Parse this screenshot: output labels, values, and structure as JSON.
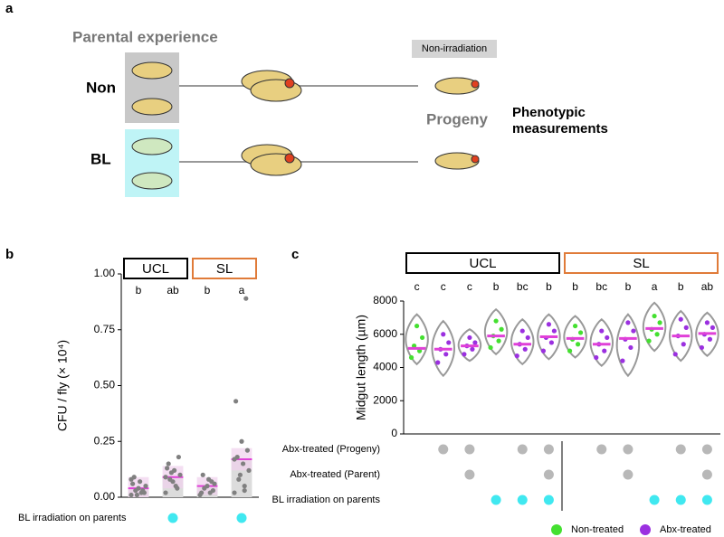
{
  "panel_a": {
    "label": "a",
    "heading": "Parental experience",
    "rows": [
      "Non",
      "BL"
    ],
    "tag": "Non-irradiation",
    "progeny": "Progeny",
    "measure": [
      "Phenotypic",
      "measurements"
    ]
  },
  "chart_data": [
    {
      "type": "bar",
      "panel": "b",
      "categories": [
        null,
        null,
        null,
        null
      ],
      "values": [
        0.04,
        0.09,
        0.05,
        0.17
      ],
      "errors": [
        0.05,
        0.05,
        0.04,
        0.05
      ],
      "points": [
        [
          0.01,
          0.02,
          0.03,
          0.05,
          0.07,
          0.09,
          0.02,
          0.04,
          0.06,
          0.03,
          0.01,
          0.08
        ],
        [
          0.02,
          0.05,
          0.08,
          0.1,
          0.12,
          0.15,
          0.18,
          0.07,
          0.13,
          0.04,
          0.11,
          0.09
        ],
        [
          0.01,
          0.02,
          0.04,
          0.06,
          0.08,
          0.1,
          0.03,
          0.05,
          0.02,
          0.07
        ],
        [
          0.02,
          0.05,
          0.08,
          0.12,
          0.15,
          0.18,
          0.21,
          0.25,
          0.43,
          0.89,
          0.1,
          0.17,
          0.03
        ]
      ],
      "letters": [
        "b",
        "ab",
        "b",
        "a"
      ],
      "groups": [
        {
          "name": "UCL",
          "color": "#000000",
          "from": 0,
          "to": 1
        },
        {
          "name": "SL",
          "color": "#e07b39",
          "from": 2,
          "to": 3
        }
      ],
      "ylabel": "CFU / fly (× 10⁴)",
      "ylim": [
        0,
        1
      ],
      "yticks": [
        {
          "value": 0,
          "label": "0.00"
        },
        {
          "value": 0.25,
          "label": "0.25"
        },
        {
          "value": 0.5,
          "label": "0.50"
        },
        {
          "value": 0.75,
          "label": "0.75"
        },
        {
          "value": 1,
          "label": "1.00"
        }
      ],
      "bar_color": "#dcdcdc",
      "error_color": "#f0d0ec",
      "mean_color": "#e040d8",
      "point_color": "#808080",
      "rows": [
        {
          "name": "BL irradiation on parents",
          "values": [
            false,
            true,
            false,
            true
          ]
        }
      ],
      "row_color": "#40e8f0"
    },
    {
      "type": "violin",
      "panel": "c",
      "categories": [
        null,
        null,
        null,
        null,
        null,
        null,
        null,
        null,
        null,
        null,
        null,
        null
      ],
      "values": [
        5150,
        5100,
        5300,
        5900,
        5400,
        5850,
        5750,
        5400,
        5750,
        6350,
        5900,
        6050
      ],
      "min": [
        4200,
        3500,
        4400,
        4800,
        4200,
        4500,
        4600,
        4100,
        3500,
        5000,
        4400,
        4700
      ],
      "max": [
        7200,
        6800,
        6300,
        7500,
        6900,
        7200,
        7100,
        6900,
        7200,
        7900,
        7400,
        7300
      ],
      "points": [
        [
          4600,
          5000,
          5300,
          5800,
          6500
        ],
        [
          4300,
          4800,
          5100,
          5500,
          6000
        ],
        [
          4800,
          5100,
          5300,
          5500,
          5800
        ],
        [
          5200,
          5600,
          5900,
          6300,
          6800
        ],
        [
          4700,
          5100,
          5400,
          5800,
          6200
        ],
        [
          5000,
          5500,
          5800,
          6200,
          6600
        ],
        [
          5000,
          5400,
          5700,
          6100,
          6500
        ],
        [
          4600,
          5000,
          5400,
          5800,
          6200
        ],
        [
          4400,
          5200,
          5700,
          6200,
          6700
        ],
        [
          5600,
          6000,
          6300,
          6700,
          7100
        ],
        [
          4800,
          5400,
          5900,
          6400,
          6900
        ],
        [
          5200,
          5700,
          6000,
          6400,
          6700
        ]
      ],
      "point_series": [
        0,
        1,
        1,
        0,
        1,
        1,
        0,
        1,
        1,
        0,
        1,
        1
      ],
      "series": [
        {
          "name": "Non-treated",
          "color": "#44e030"
        },
        {
          "name": "Abx-treated",
          "color": "#9b30e0"
        }
      ],
      "letters": [
        "c",
        "c",
        "c",
        "b",
        "bc",
        "b",
        "b",
        "bc",
        "b",
        "a",
        "b",
        "ab"
      ],
      "groups": [
        {
          "name": "UCL",
          "color": "#000000",
          "from": 0,
          "to": 5
        },
        {
          "name": "SL",
          "color": "#e07b39",
          "from": 6,
          "to": 11
        }
      ],
      "ylabel": "Midgut length (µm)",
      "ylim": [
        0,
        8000
      ],
      "yticks": [
        0,
        2000,
        4000,
        6000,
        8000
      ],
      "violin_color": "#999999",
      "mean_color": "#e040d8",
      "rows": [
        {
          "name": "Abx-treated (Progeny)",
          "values": [
            false,
            true,
            true,
            false,
            true,
            true,
            false,
            true,
            true,
            false,
            true,
            true
          ]
        },
        {
          "name": "Abx-treated (Parent)",
          "values": [
            false,
            false,
            true,
            false,
            false,
            true,
            false,
            false,
            true,
            false,
            false,
            true
          ]
        },
        {
          "name": "BL irradiation on parents",
          "values": [
            false,
            false,
            false,
            true,
            true,
            true,
            false,
            false,
            false,
            true,
            true,
            true
          ]
        }
      ],
      "row_colors": [
        "#b8b8b8",
        "#b8b8b8",
        "#40e8f0"
      ]
    }
  ]
}
